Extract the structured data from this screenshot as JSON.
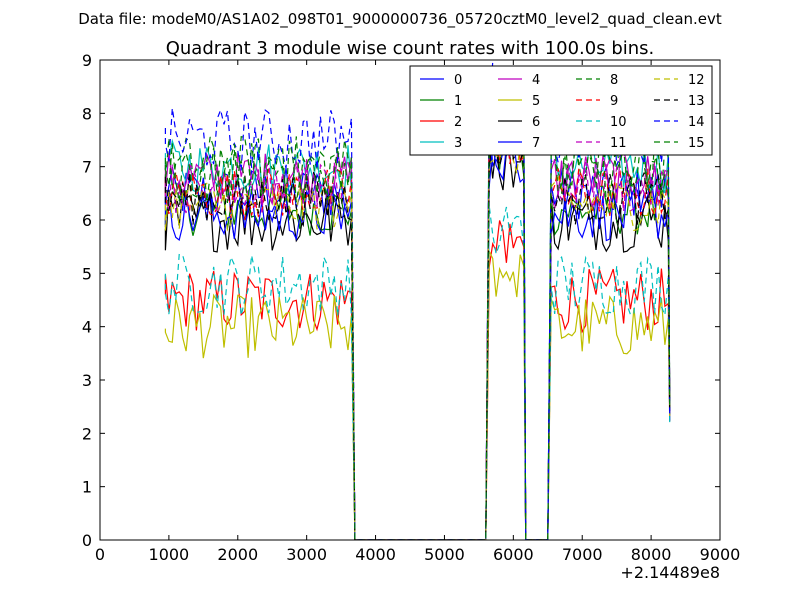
{
  "header": {
    "suptitle": "Data file: modeM0/AS1A02_098T01_9000000736_05720cztM0_level2_quad_clean.evt"
  },
  "chart_data": {
    "type": "line",
    "title": "Quadrant 3 module wise count rates with 100.0s bins.",
    "xlabel": "",
    "ylabel": "",
    "xlim": [
      0,
      9000
    ],
    "ylim": [
      0,
      9
    ],
    "x_offset_label": "+2.14489e8",
    "x_ticks": [
      "0",
      "1000",
      "2000",
      "3000",
      "4000",
      "5000",
      "6000",
      "7000",
      "8000",
      "9000"
    ],
    "y_ticks": [
      "0",
      "1",
      "2",
      "3",
      "4",
      "5",
      "6",
      "7",
      "8",
      "9"
    ],
    "grid": false,
    "legend_position": "upper-right",
    "legend_columns": 4,
    "series": [
      {
        "name": "0",
        "color": "#0000ff",
        "dash": "solid",
        "level": 6.5,
        "noise": 0.25
      },
      {
        "name": "1",
        "color": "#008000",
        "dash": "solid",
        "level": 6.2,
        "noise": 0.25
      },
      {
        "name": "2",
        "color": "#ff0000",
        "dash": "solid",
        "level": 4.5,
        "noise": 0.3
      },
      {
        "name": "3",
        "color": "#00bfbf",
        "dash": "solid",
        "level": 7.0,
        "noise": 0.25
      },
      {
        "name": "4",
        "color": "#bf00bf",
        "dash": "solid",
        "level": 6.8,
        "noise": 0.25
      },
      {
        "name": "5",
        "color": "#bfbf00",
        "dash": "solid",
        "level": 4.0,
        "noise": 0.3
      },
      {
        "name": "6",
        "color": "#000000",
        "dash": "solid",
        "level": 6.0,
        "noise": 0.3
      },
      {
        "name": "7",
        "color": "#0000ff",
        "dash": "solid",
        "level": 6.1,
        "noise": 0.25
      },
      {
        "name": "8",
        "color": "#008000",
        "dash": "dashed",
        "level": 7.0,
        "noise": 0.3
      },
      {
        "name": "9",
        "color": "#ff0000",
        "dash": "dashed",
        "level": 6.5,
        "noise": 0.25
      },
      {
        "name": "10",
        "color": "#00bfbf",
        "dash": "dashed",
        "level": 4.8,
        "noise": 0.3
      },
      {
        "name": "11",
        "color": "#bf00bf",
        "dash": "dashed",
        "level": 6.6,
        "noise": 0.25
      },
      {
        "name": "12",
        "color": "#bfbf00",
        "dash": "dashed",
        "level": 6.3,
        "noise": 0.25
      },
      {
        "name": "13",
        "color": "#000000",
        "dash": "dashed",
        "level": 6.4,
        "noise": 0.25
      },
      {
        "name": "14",
        "color": "#0000ff",
        "dash": "dashed",
        "level": 7.5,
        "noise": 0.3
      },
      {
        "name": "15",
        "color": "#008000",
        "dash": "dashed",
        "level": 6.9,
        "noise": 0.3
      }
    ],
    "segments": [
      {
        "x_start": 950,
        "x_end": 3650,
        "bin": 50
      },
      {
        "x_start": 5650,
        "x_end": 6150,
        "bin": 50
      },
      {
        "x_start": 6550,
        "x_end": 8250,
        "bin": 50
      }
    ]
  }
}
